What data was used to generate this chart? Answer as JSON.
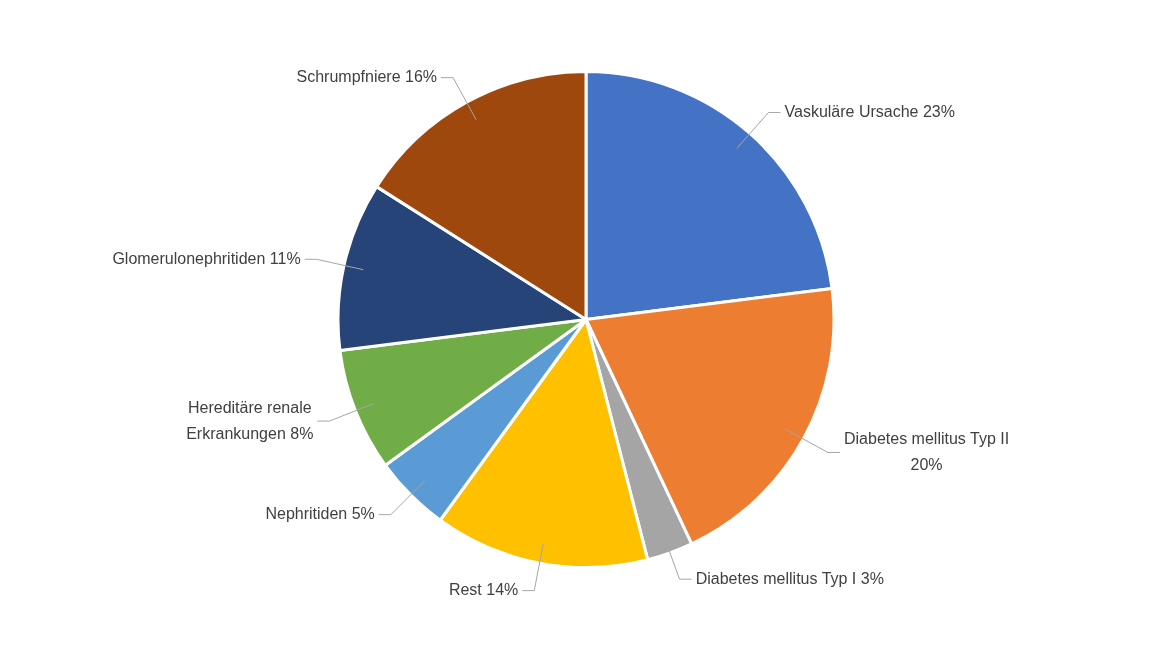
{
  "chart_data": {
    "type": "pie",
    "categories": [
      "Vaskuläre Ursache",
      "Diabetes mellitus Typ II",
      "Diabetes mellitus Typ I",
      "Rest",
      "Nephritiden",
      "Hereditäre renale Erkrankungen",
      "Glomerulonephritiden",
      "Schrumpfniere"
    ],
    "values": [
      23,
      20,
      3,
      14,
      5,
      8,
      11,
      16
    ],
    "value_labels": [
      "23%",
      "20%",
      "3%",
      "14%",
      "5%",
      "8%",
      "11%",
      "16%"
    ],
    "colors": [
      "#4472c4",
      "#ed7d31",
      "#a5a5a5",
      "#ffc000",
      "#5b9bd5",
      "#70ad47",
      "#264478",
      "#9e480e"
    ],
    "legend": false
  }
}
